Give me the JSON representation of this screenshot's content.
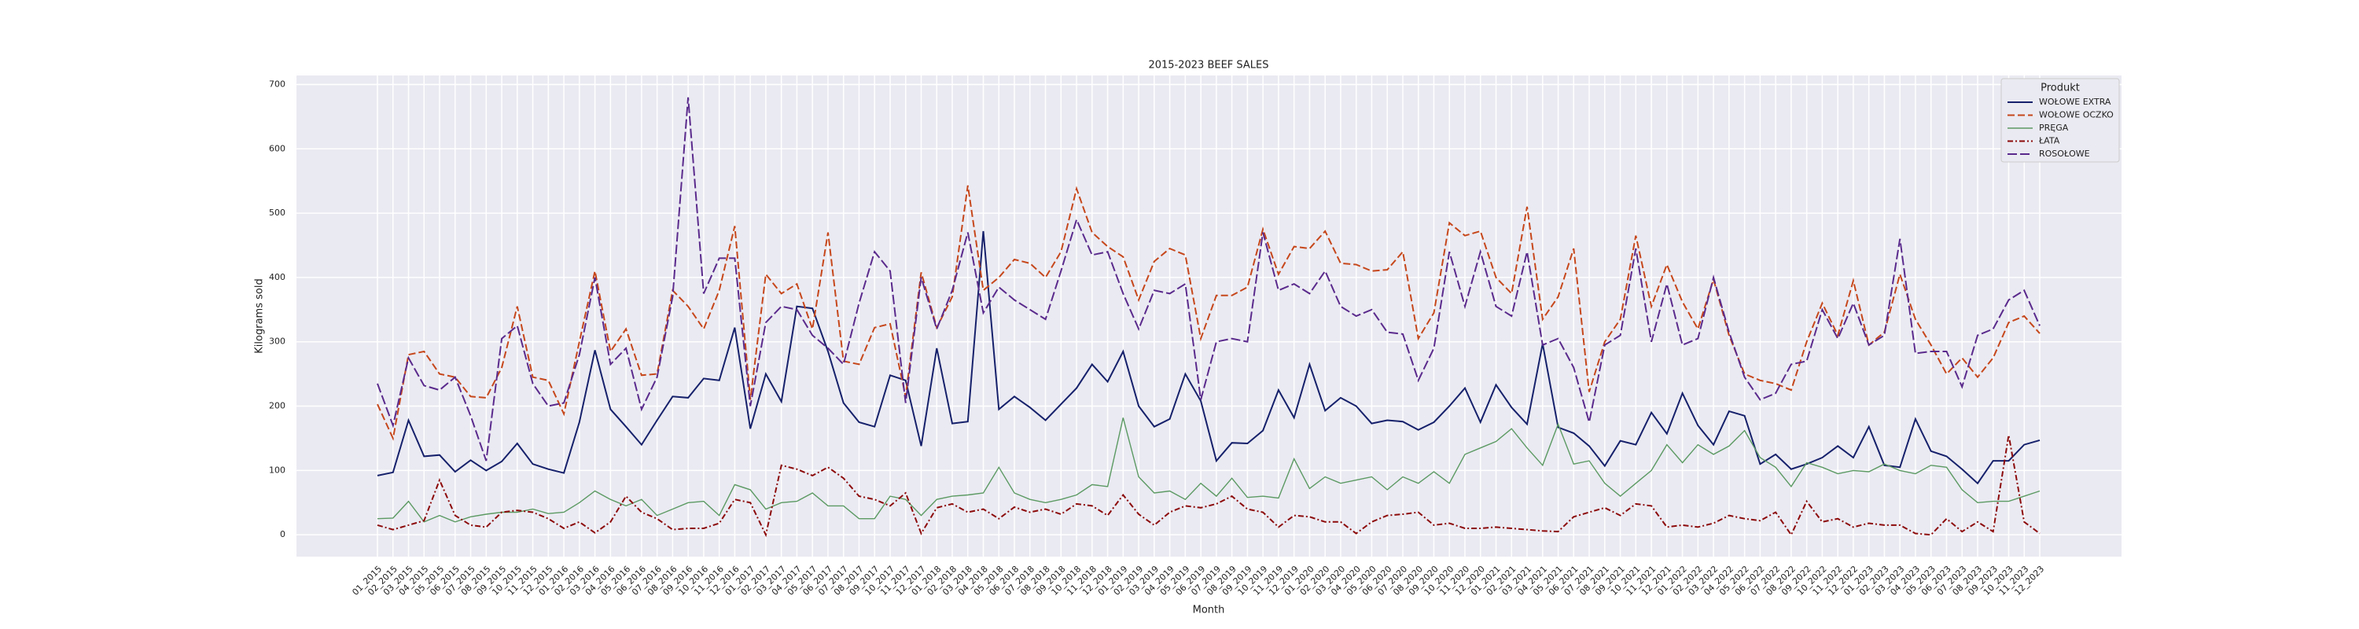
{
  "chart_data": {
    "type": "line",
    "title": "2015-2023 BEEF SALES",
    "x_label": "Month",
    "y_label": "Kilograms sold",
    "legend_title": "Produkt",
    "legend_position": "upper right",
    "grid": true,
    "ylim": [
      -34,
      714
    ],
    "yticks": [
      0,
      100,
      200,
      300,
      400,
      500,
      600,
      700
    ],
    "categories": [
      "01_2015",
      "02_2015",
      "03_2015",
      "04_2015",
      "05_2015",
      "06_2015",
      "07_2015",
      "08_2015",
      "09_2015",
      "10_2015",
      "11_2015",
      "12_2015",
      "01_2016",
      "02_2016",
      "03_2016",
      "04_2016",
      "05_2016",
      "06_2016",
      "07_2016",
      "08_2016",
      "09_2016",
      "10_2016",
      "11_2016",
      "12_2016",
      "01_2017",
      "02_2017",
      "03_2017",
      "04_2017",
      "05_2017",
      "06_2017",
      "07_2017",
      "08_2017",
      "09_2017",
      "10_2017",
      "11_2017",
      "12_2017",
      "01_2018",
      "02_2018",
      "03_2018",
      "04_2018",
      "05_2018",
      "06_2018",
      "07_2018",
      "08_2018",
      "09_2018",
      "10_2018",
      "11_2018",
      "12_2018",
      "01_2019",
      "02_2019",
      "03_2019",
      "04_2019",
      "05_2019",
      "06_2019",
      "07_2019",
      "08_2019",
      "09_2019",
      "10_2019",
      "11_2019",
      "12_2019",
      "01_2020",
      "02_2020",
      "03_2020",
      "04_2020",
      "05_2020",
      "06_2020",
      "07_2020",
      "08_2020",
      "09_2020",
      "10_2020",
      "11_2020",
      "12_2020",
      "01_2021",
      "02_2021",
      "03_2021",
      "04_2021",
      "05_2021",
      "06_2021",
      "07_2021",
      "08_2021",
      "09_2021",
      "10_2021",
      "11_2021",
      "12_2021",
      "01_2022",
      "02_2022",
      "03_2022",
      "04_2022",
      "05_2022",
      "06_2022",
      "07_2022",
      "08_2022",
      "09_2022",
      "10_2022",
      "11_2022",
      "12_2022",
      "01_2023",
      "02_2023",
      "03_2023",
      "04_2023",
      "05_2023",
      "06_2023",
      "07_2023",
      "08_2023",
      "09_2023",
      "10_2023",
      "11_2023",
      "12_2023"
    ],
    "series": [
      {
        "name": "WOŁOWE EXTRA",
        "color": "#16216b",
        "values": [
          92,
          97,
          178,
          122,
          124,
          98,
          116,
          100,
          114,
          142,
          110,
          102,
          96,
          175,
          287,
          195,
          168,
          140,
          178,
          215,
          213,
          243,
          240,
          322,
          165,
          250,
          207,
          355,
          352,
          285,
          205,
          175,
          168,
          248,
          240,
          138,
          290,
          173,
          176,
          472,
          195,
          215,
          198,
          178,
          203,
          228,
          265,
          238,
          285,
          200,
          168,
          180,
          250,
          208,
          115,
          143,
          142,
          162,
          225,
          182,
          265,
          193,
          213,
          200,
          173,
          178,
          176,
          163,
          175,
          200,
          228,
          175,
          233,
          198,
          172,
          297,
          167,
          158,
          138,
          107,
          146,
          140,
          190,
          157,
          220,
          170,
          140,
          192,
          185,
          110,
          125,
          102,
          110,
          120,
          138,
          120,
          168,
          108,
          105,
          180,
          130,
          122,
          102,
          80,
          115,
          115,
          140,
          147
        ]
      },
      {
        "name": "WOŁOWE OCZKO",
        "color": "#c6471b",
        "values": [
          203,
          150,
          280,
          285,
          250,
          245,
          215,
          213,
          260,
          355,
          245,
          240,
          188,
          300,
          410,
          285,
          320,
          248,
          250,
          380,
          355,
          320,
          380,
          480,
          210,
          405,
          375,
          390,
          320,
          470,
          270,
          265,
          322,
          328,
          215,
          408,
          322,
          370,
          543,
          380,
          400,
          428,
          422,
          400,
          440,
          538,
          470,
          448,
          432,
          365,
          425,
          445,
          435,
          305,
          372,
          372,
          385,
          475,
          405,
          448,
          445,
          472,
          422,
          420,
          410,
          412,
          440,
          305,
          345,
          485,
          465,
          472,
          400,
          375,
          510,
          335,
          370,
          445,
          222,
          300,
          335,
          465,
          355,
          420,
          362,
          320,
          397,
          310,
          250,
          240,
          235,
          225,
          300,
          360,
          310,
          395,
          295,
          315,
          405,
          335,
          295,
          250,
          275,
          245,
          275,
          330,
          340,
          313
        ]
      },
      {
        "name": "PRĘGA",
        "color": "#5c9a63",
        "values": [
          25,
          26,
          52,
          20,
          30,
          20,
          28,
          32,
          35,
          35,
          40,
          33,
          35,
          50,
          68,
          55,
          45,
          55,
          30,
          40,
          50,
          52,
          30,
          78,
          70,
          40,
          50,
          52,
          65,
          45,
          45,
          25,
          25,
          60,
          55,
          30,
          55,
          60,
          62,
          65,
          105,
          65,
          55,
          50,
          55,
          62,
          78,
          75,
          182,
          90,
          65,
          68,
          55,
          80,
          60,
          88,
          58,
          60,
          57,
          118,
          72,
          90,
          80,
          85,
          90,
          70,
          90,
          80,
          98,
          80,
          125,
          135,
          145,
          165,
          135,
          108,
          172,
          110,
          115,
          80,
          60,
          80,
          100,
          140,
          112,
          140,
          125,
          138,
          162,
          120,
          105,
          75,
          112,
          105,
          95,
          100,
          98,
          110,
          100,
          95,
          108,
          105,
          70,
          50,
          52,
          52,
          60,
          68
        ]
      },
      {
        "name": "ŁATA",
        "color": "#8c0a0a",
        "values": [
          15,
          8,
          15,
          22,
          85,
          30,
          15,
          12,
          35,
          38,
          35,
          25,
          10,
          20,
          3,
          20,
          60,
          35,
          25,
          8,
          10,
          10,
          18,
          55,
          50,
          0,
          108,
          102,
          92,
          105,
          88,
          60,
          55,
          45,
          65,
          2,
          42,
          48,
          35,
          40,
          25,
          43,
          35,
          40,
          32,
          48,
          45,
          30,
          62,
          32,
          15,
          35,
          45,
          42,
          48,
          60,
          40,
          35,
          12,
          30,
          28,
          20,
          20,
          2,
          20,
          30,
          32,
          35,
          15,
          18,
          10,
          10,
          12,
          10,
          8,
          6,
          5,
          28,
          35,
          42,
          30,
          48,
          45,
          12,
          15,
          12,
          18,
          30,
          25,
          22,
          35,
          0,
          52,
          20,
          25,
          12,
          18,
          15,
          15,
          2,
          0,
          25,
          5,
          20,
          5,
          155,
          20,
          2
        ]
      },
      {
        "name": "ROSOŁOWE",
        "color": "#5a2a8c",
        "values": [
          235,
          170,
          275,
          232,
          225,
          245,
          185,
          115,
          305,
          325,
          235,
          200,
          205,
          280,
          400,
          265,
          290,
          195,
          245,
          370,
          680,
          375,
          430,
          430,
          200,
          330,
          355,
          350,
          310,
          290,
          265,
          360,
          440,
          410,
          205,
          400,
          320,
          380,
          470,
          345,
          385,
          365,
          350,
          335,
          410,
          490,
          435,
          440,
          375,
          320,
          380,
          375,
          390,
          210,
          300,
          305,
          300,
          470,
          380,
          390,
          375,
          410,
          355,
          340,
          350,
          315,
          312,
          240,
          290,
          440,
          355,
          440,
          355,
          340,
          440,
          295,
          305,
          260,
          175,
          295,
          310,
          445,
          300,
          390,
          295,
          305,
          400,
          315,
          245,
          210,
          220,
          265,
          270,
          350,
          305,
          360,
          295,
          310,
          460,
          282,
          285,
          285,
          230,
          310,
          320,
          365,
          380,
          325
        ]
      }
    ]
  }
}
